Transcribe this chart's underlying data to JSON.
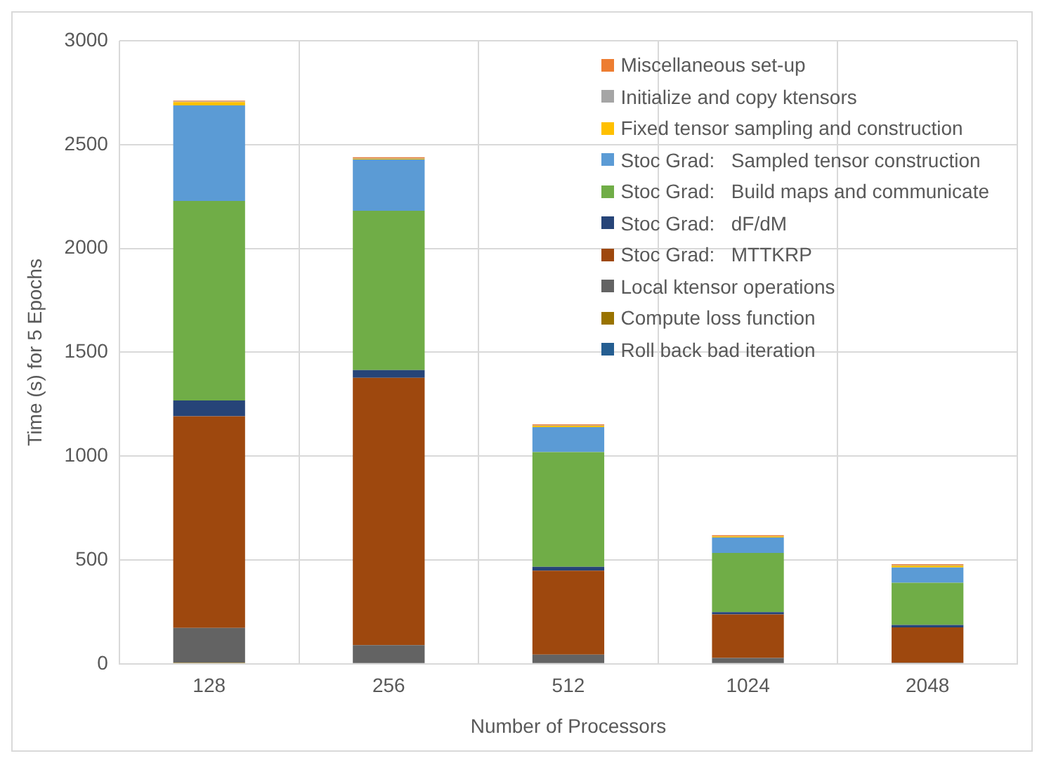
{
  "chart_data": {
    "type": "bar",
    "stacked": true,
    "xlabel": "Number of Processors",
    "ylabel": "Time (s) for 5 Epochs",
    "categories": [
      "128",
      "256",
      "512",
      "1024",
      "2048"
    ],
    "ylim": [
      0,
      3000
    ],
    "yticks": [
      0,
      500,
      1000,
      1500,
      2000,
      2500,
      3000
    ],
    "grid": true,
    "legend": "top right",
    "series": [
      {
        "name": "Roll back bad iteration",
        "color": "#255e91",
        "values": [
          0,
          0,
          0,
          0,
          0
        ]
      },
      {
        "name": "Compute loss function",
        "color": "#997300",
        "values": [
          5,
          0,
          0,
          0,
          0
        ]
      },
      {
        "name": "Local ktensor operations",
        "color": "#636363",
        "values": [
          168,
          90,
          44,
          28,
          5
        ]
      },
      {
        "name": "Stoc Grad:   MTTKRP",
        "color": "#9e480e",
        "values": [
          1019,
          1287,
          404,
          210,
          170
        ]
      },
      {
        "name": "Stoc Grad:   dF/dM",
        "color": "#264478",
        "values": [
          76,
          37,
          19,
          11,
          12
        ]
      },
      {
        "name": "Stoc Grad:   Build maps and communicate",
        "color": "#70ad47",
        "values": [
          961,
          767,
          552,
          285,
          203
        ]
      },
      {
        "name": "Stoc Grad:   Sampled tensor construction",
        "color": "#5b9bd5",
        "values": [
          460,
          247,
          120,
          74,
          74
        ]
      },
      {
        "name": "Fixed tensor sampling and construction",
        "color": "#ffc000",
        "values": [
          16,
          4,
          7,
          5,
          9
        ]
      },
      {
        "name": "Initialize and copy ktensors",
        "color": "#a5a5a5",
        "values": [
          2,
          2,
          2,
          2,
          2
        ]
      },
      {
        "name": "Miscellaneous set-up",
        "color": "#ed7d31",
        "values": [
          5,
          5,
          5,
          4,
          5
        ]
      }
    ]
  }
}
